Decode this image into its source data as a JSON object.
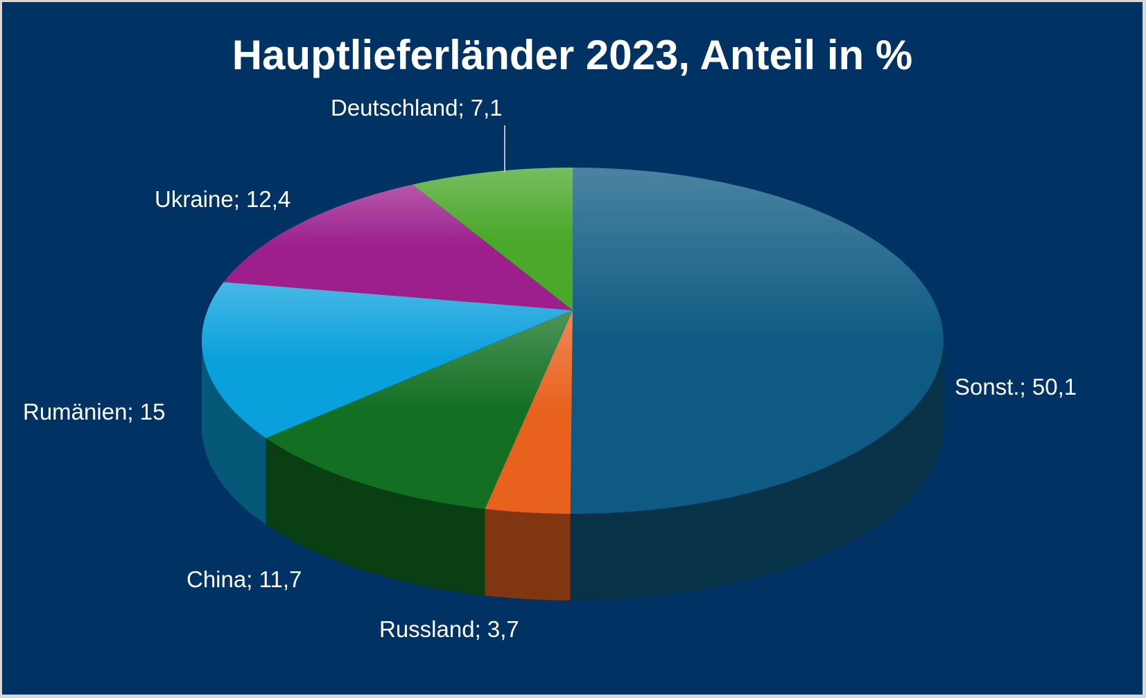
{
  "chart_data": {
    "type": "pie",
    "title": "Hauptlieferländer 2023, Anteil in %",
    "style": "3d",
    "slices": [
      {
        "name": "Sonst.",
        "value": 50.1,
        "label": "Sonst.; 50,1",
        "color": "#0e5a82"
      },
      {
        "name": "Russland",
        "value": 3.7,
        "label": "Russland; 3,7",
        "color": "#e8621e"
      },
      {
        "name": "China",
        "value": 11.7,
        "label": "China; 11,7",
        "color": "#137022"
      },
      {
        "name": "Rumänien",
        "value": 15,
        "label": "Rumänien; 15",
        "color": "#0aa0dc"
      },
      {
        "name": "Ukraine",
        "value": 12.4,
        "label": "Ukraine; 12,4",
        "color": "#9c1f8c"
      },
      {
        "name": "Deutschland",
        "value": 7.1,
        "label": "Deutschland; 7,1",
        "color": "#4aa82a"
      }
    ]
  }
}
